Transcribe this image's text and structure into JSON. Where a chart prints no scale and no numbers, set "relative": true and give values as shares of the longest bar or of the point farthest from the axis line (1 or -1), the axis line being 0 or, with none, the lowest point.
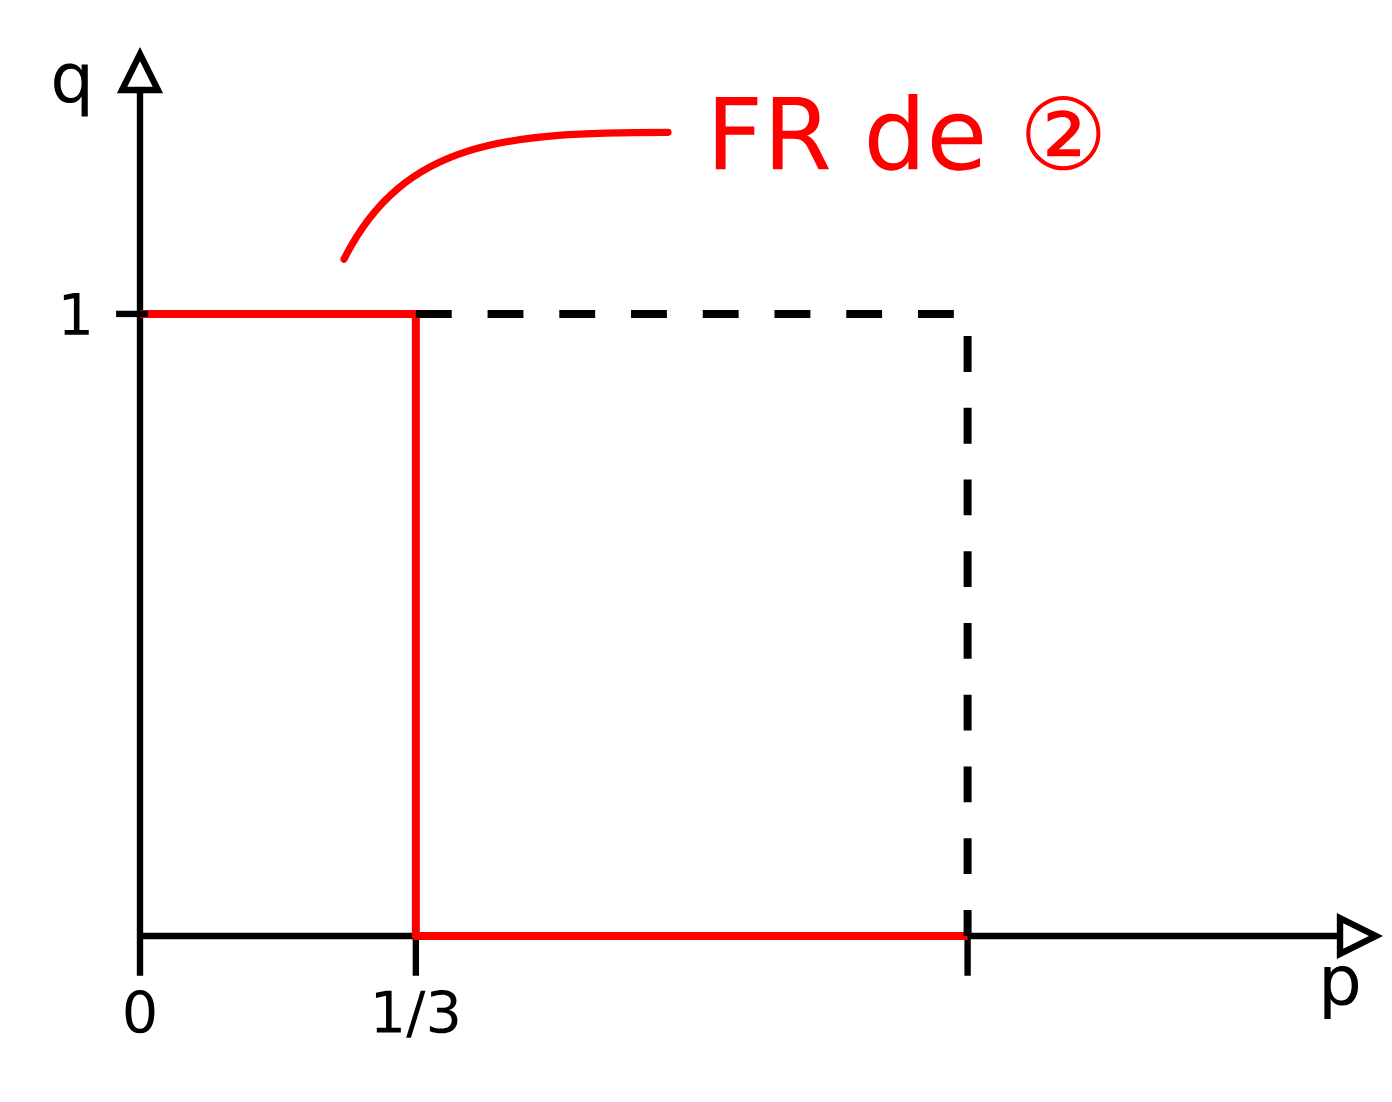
{
  "chart_data": {
    "type": "line",
    "xlabel": "p",
    "ylabel": "q",
    "relative": true,
    "xlim": [
      0,
      1.45
    ],
    "xticks": [
      0,
      {
        "value": 0.3333,
        "label": "1/3"
      },
      {
        "value": 1,
        "label": null
      }
    ],
    "marker": "none",
    "grid": false,
    "annotations": [
      "FR de ②",
      {
        "text": "1",
        "x": 0,
        "y": 1
      }
    ],
    "series": [
      {
        "color": "#ff0000",
        "x": [
          0,
          0.3333,
          0.3333,
          1
        ],
        "values": [
          1,
          1,
          0,
          0
        ]
      },
      {
        "color": "#000000",
        "line_style": "dashed",
        "x": [
          0.3333,
          1,
          1
        ],
        "values": [
          1,
          1,
          0
        ]
      }
    ]
  }
}
